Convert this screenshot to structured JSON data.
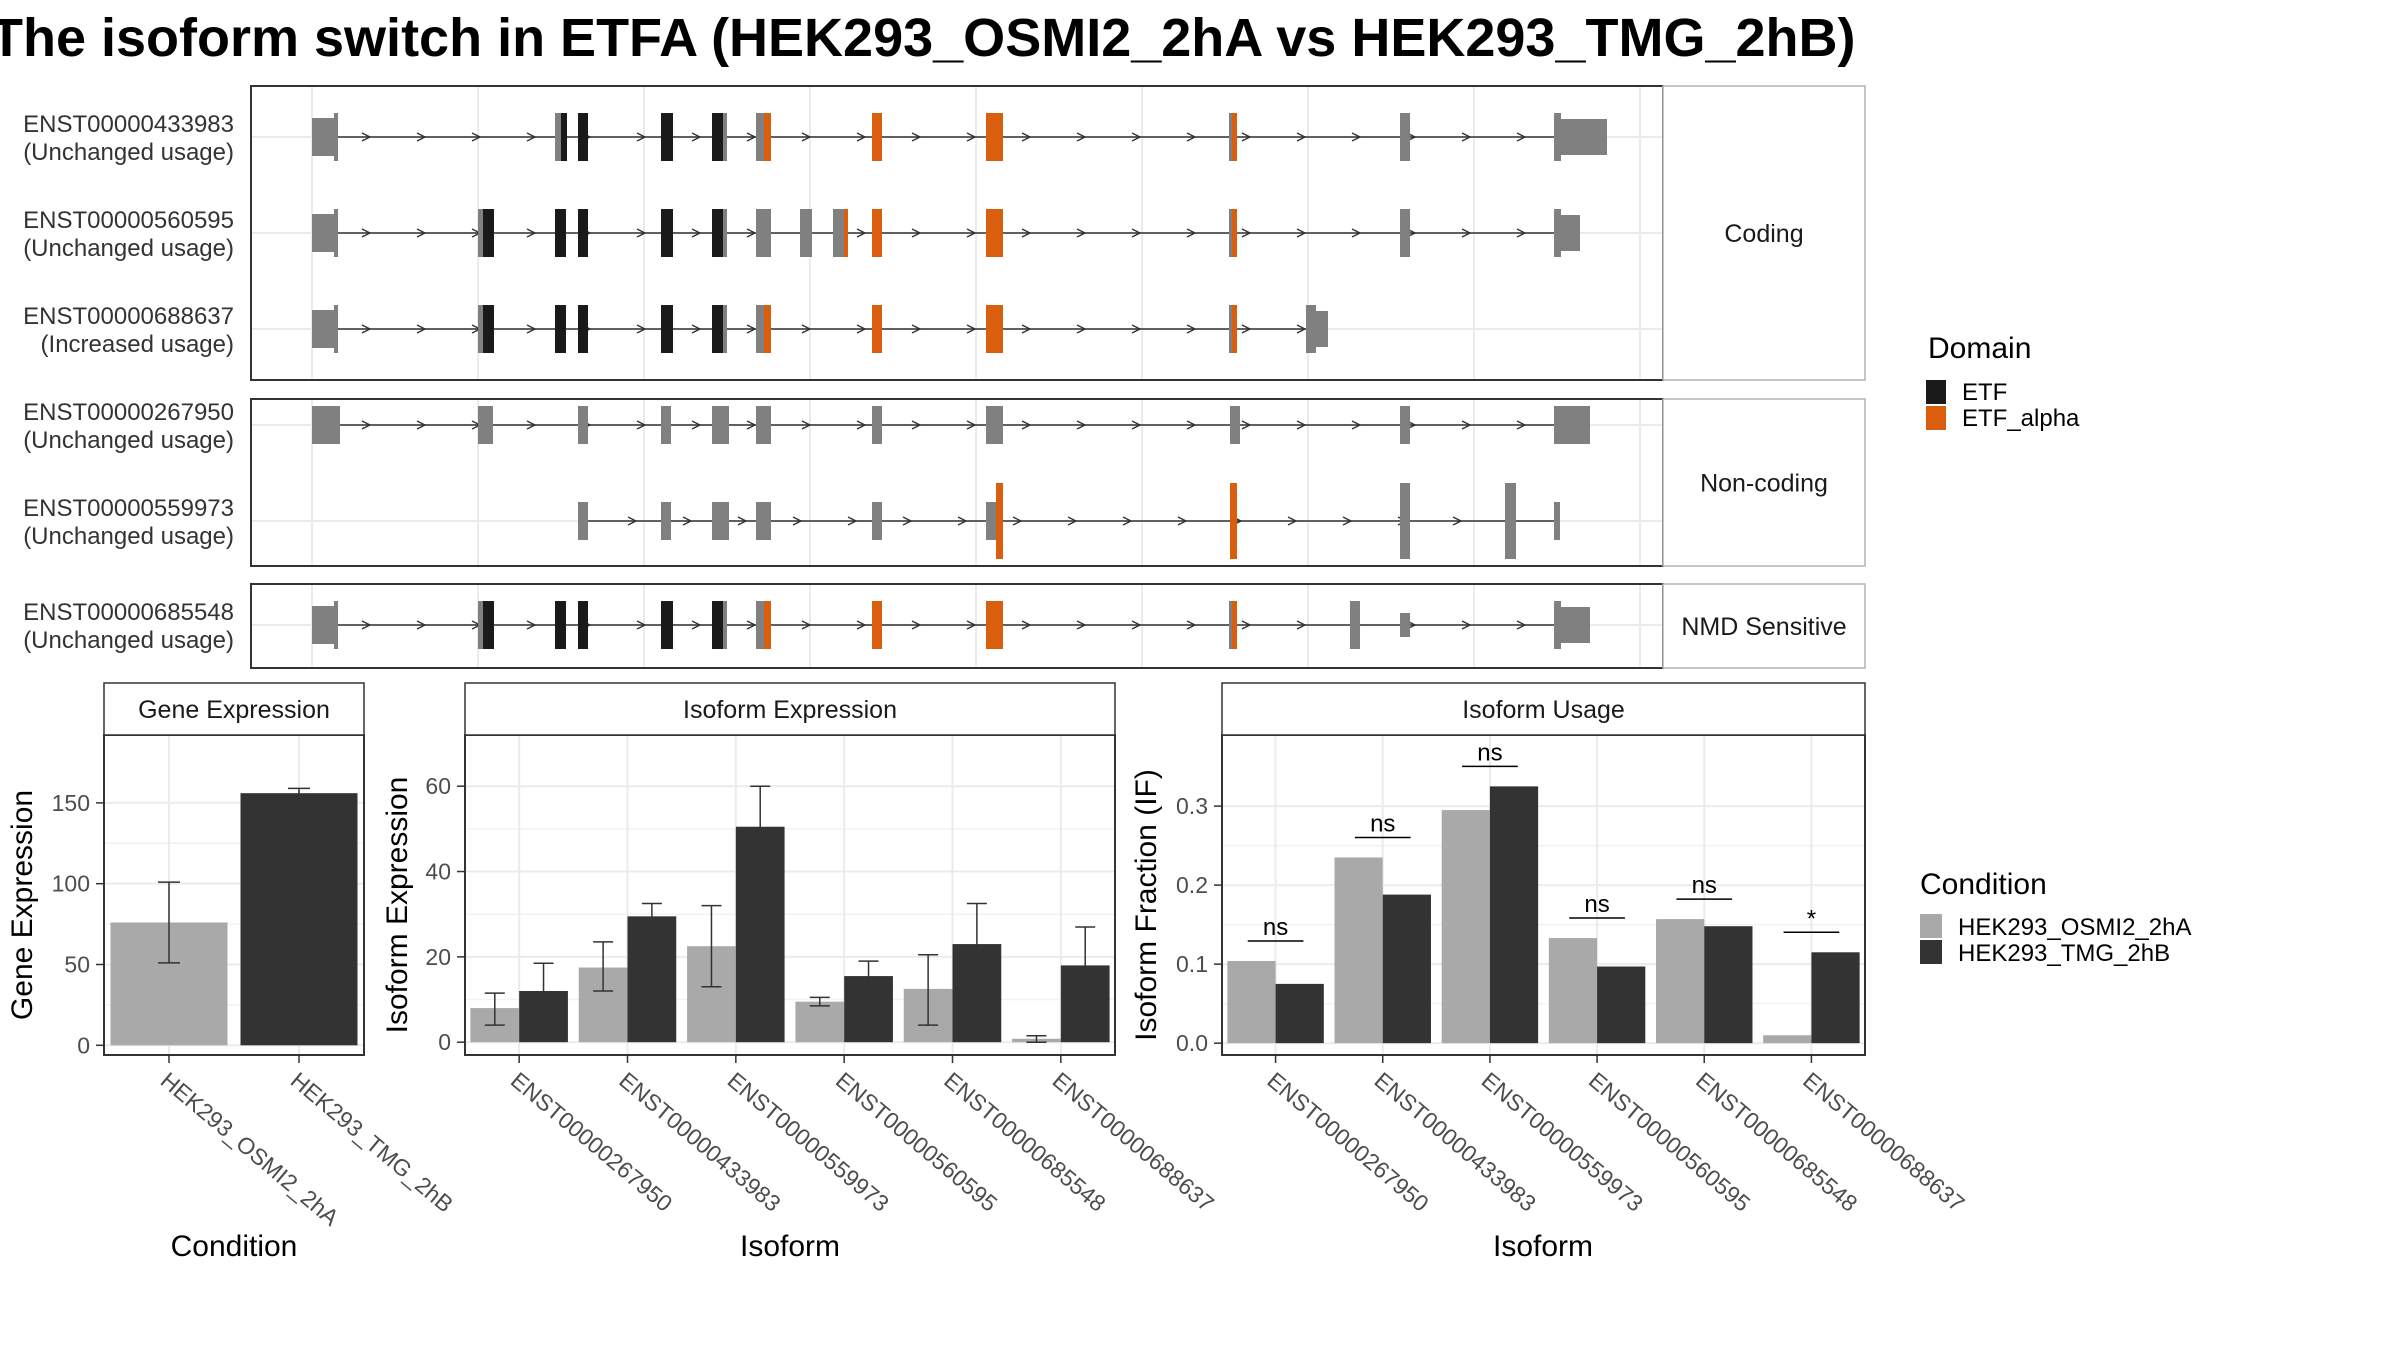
{
  "title": "The isoform switch in ETFA (HEK293_OSMI2_2hA vs HEK293_TMG_2hB)",
  "colors": {
    "etf": "#1a1a1a",
    "etf_alpha": "#d95f0e",
    "exon_gray": "#808080",
    "cond_a": "#a9a9a9",
    "cond_b": "#333333",
    "grid": "#ebebeb",
    "panel_border": "#333333",
    "strip_fill": "#ffffff",
    "intron": "#333333"
  },
  "structure": {
    "facets": [
      "Coding",
      "Non-coding",
      "NMD Sensitive"
    ],
    "transcripts": [
      {
        "id": "ENST00000433983",
        "usage": "(Unchanged usage)",
        "facet": 0
      },
      {
        "id": "ENST00000560595",
        "usage": "(Unchanged usage)",
        "facet": 0
      },
      {
        "id": "ENST00000688637",
        "usage": "(Increased usage)",
        "facet": 0
      },
      {
        "id": "ENST00000267950",
        "usage": "(Unchanged usage)",
        "facet": 1
      },
      {
        "id": "ENST00000559973",
        "usage": "(Unchanged usage)",
        "facet": 1
      },
      {
        "id": "ENST00000685548",
        "usage": "(Unchanged usage)",
        "facet": 2
      }
    ]
  },
  "legend_domain": {
    "title": "Domain",
    "items": [
      {
        "label": "ETF",
        "color": "#1a1a1a"
      },
      {
        "label": "ETF_alpha",
        "color": "#d95f0e"
      }
    ]
  },
  "legend_condition": {
    "title": "Condition",
    "items": [
      {
        "label": "HEK293_OSMI2_2hA",
        "color": "#a9a9a9"
      },
      {
        "label": "HEK293_TMG_2hB",
        "color": "#333333"
      }
    ]
  },
  "chart_data": [
    {
      "type": "bar",
      "title": "Gene Expression",
      "xlabel": "Condition",
      "ylabel": "Gene Expression",
      "categories": [
        "HEK293_OSMI2_2hA",
        "HEK293_TMG_2hB"
      ],
      "values": [
        76,
        156
      ],
      "errors": [
        [
          51,
          101
        ],
        [
          153,
          159
        ]
      ],
      "ylim": [
        -6,
        192
      ],
      "yticks": [
        0,
        50,
        100,
        150
      ]
    },
    {
      "type": "bar",
      "title": "Isoform Expression",
      "xlabel": "Isoform",
      "ylabel": "Isoform Expression",
      "categories": [
        "ENST00000267950",
        "ENST00000433983",
        "ENST00000559973",
        "ENST00000560595",
        "ENST00000685548",
        "ENST00000688637"
      ],
      "series": [
        {
          "name": "HEK293_OSMI2_2hA",
          "values": [
            8,
            17.5,
            22.5,
            9.5,
            12.5,
            0.8
          ],
          "errors": [
            [
              4,
              11.5
            ],
            [
              12,
              23.5
            ],
            [
              13,
              32
            ],
            [
              8.5,
              10.5
            ],
            [
              4,
              20.5
            ],
            [
              0,
              1.5
            ]
          ]
        },
        {
          "name": "HEK293_TMG_2hB",
          "values": [
            12,
            29.5,
            50.5,
            15.5,
            23,
            18
          ],
          "errors": [
            [
              5,
              18.5
            ],
            [
              26,
              32.5
            ],
            [
              41,
              60
            ],
            [
              12,
              19
            ],
            [
              13,
              32.5
            ],
            [
              9,
              27
            ]
          ]
        }
      ],
      "ylim": [
        -3,
        72
      ],
      "yticks": [
        0,
        20,
        40,
        60
      ]
    },
    {
      "type": "bar",
      "title": "Isoform Usage",
      "xlabel": "Isoform",
      "ylabel": "Isoform Fraction (IF)",
      "categories": [
        "ENST00000267950",
        "ENST00000433983",
        "ENST00000559973",
        "ENST00000560595",
        "ENST00000685548",
        "ENST00000688637"
      ],
      "series": [
        {
          "name": "HEK293_OSMI2_2hA",
          "values": [
            0.104,
            0.235,
            0.295,
            0.133,
            0.157,
            0.01
          ]
        },
        {
          "name": "HEK293_TMG_2hB",
          "values": [
            0.075,
            0.188,
            0.325,
            0.097,
            0.148,
            0.115
          ]
        }
      ],
      "significance": [
        "ns",
        "ns",
        "ns",
        "ns",
        "ns",
        "*"
      ],
      "ylim": [
        -0.015,
        0.39
      ],
      "yticks": [
        0.0,
        0.1,
        0.2,
        0.3
      ],
      "ytick_labels": [
        "0.0",
        "0.1",
        "0.2",
        "0.3"
      ]
    }
  ]
}
